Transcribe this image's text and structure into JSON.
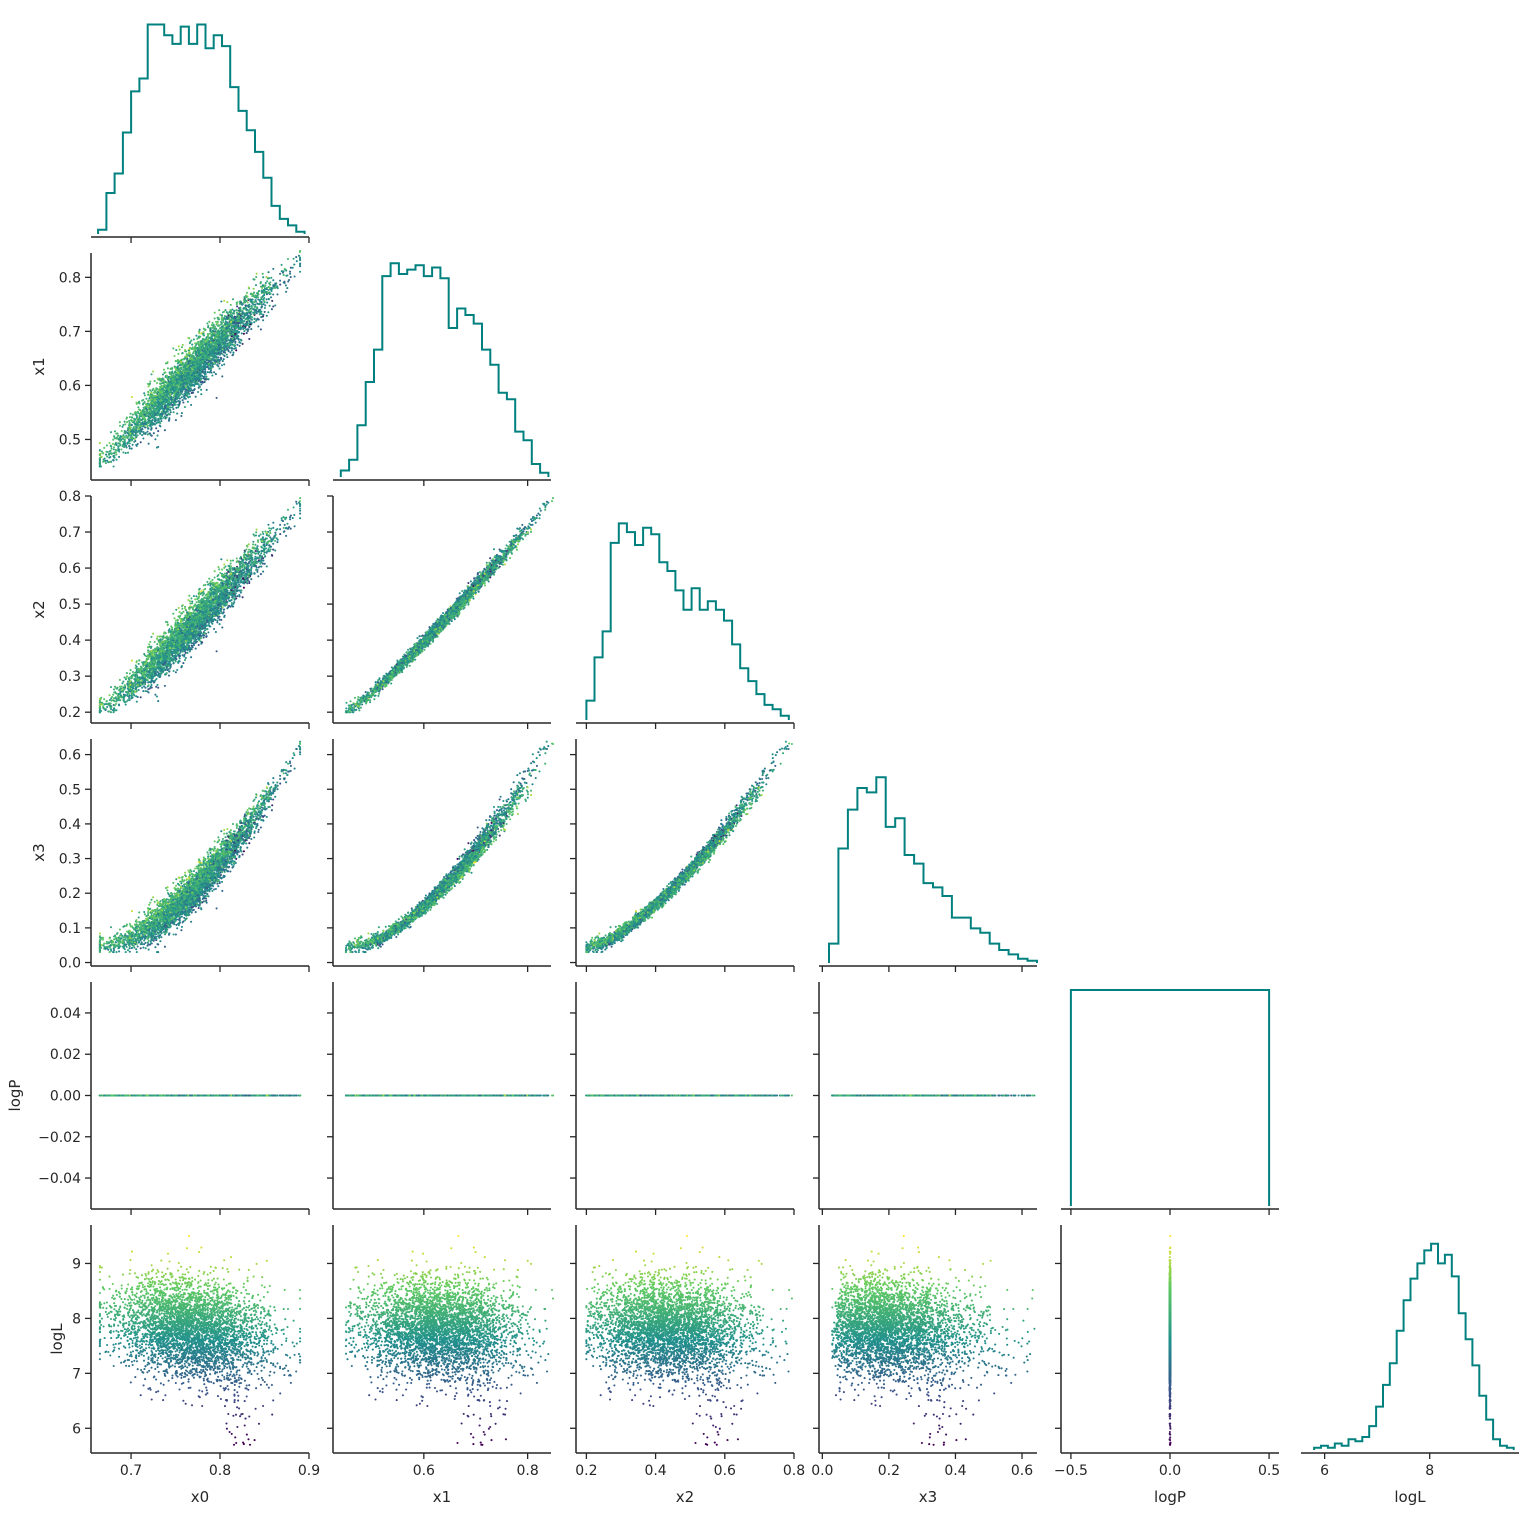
{
  "chart_data": {
    "type": "corner",
    "variables": [
      "x0",
      "x1",
      "x2",
      "x3",
      "logP",
      "logL"
    ],
    "axis_ranges": {
      "x0": [
        0.655,
        0.9
      ],
      "x1": [
        0.425,
        0.845
      ],
      "x2": [
        0.17,
        0.8
      ],
      "x3": [
        -0.01,
        0.645
      ],
      "logP": [
        -0.055,
        0.055
      ],
      "logL": [
        5.55,
        9.7
      ]
    },
    "ticks": {
      "x0": [
        "0.7",
        "0.8",
        "0.9"
      ],
      "x1": [
        "0.6",
        "0.8"
      ],
      "x2": [
        "0.2",
        "0.4",
        "0.6",
        "0.8"
      ],
      "x3": [
        "0.0",
        "0.2",
        "0.4",
        "0.6"
      ],
      "logP": [
        "−0.5",
        "0.0",
        "0.5"
      ],
      "logL": [
        "6",
        "8"
      ]
    },
    "row_ticks": {
      "x1": [
        "0.5",
        "0.6",
        "0.7",
        "0.8"
      ],
      "x2": [
        "0.2",
        "0.3",
        "0.4",
        "0.5",
        "0.6",
        "0.7",
        "0.8"
      ],
      "x3": [
        "0.0",
        "0.1",
        "0.2",
        "0.3",
        "0.4",
        "0.5",
        "0.6"
      ],
      "logP": [
        "−0.04",
        "−0.02",
        "0.00",
        "0.02",
        "0.04"
      ],
      "logL": [
        "6",
        "7",
        "8",
        "9"
      ]
    },
    "logP_hist_range": [
      -0.5,
      0.5
    ],
    "histograms": {
      "x0": [
        0.02,
        0.19,
        0.28,
        0.47,
        0.66,
        0.72,
        0.97,
        0.97,
        0.92,
        0.88,
        0.96,
        0.88,
        0.97,
        0.86,
        0.92,
        0.87,
        0.68,
        0.57,
        0.48,
        0.38,
        0.26,
        0.13,
        0.07,
        0.04,
        0.01
      ],
      "x1": [
        0.03,
        0.08,
        0.24,
        0.44,
        0.59,
        0.93,
        0.99,
        0.94,
        0.96,
        0.98,
        0.93,
        0.97,
        0.92,
        0.69,
        0.78,
        0.75,
        0.71,
        0.59,
        0.52,
        0.39,
        0.36,
        0.21,
        0.17,
        0.06,
        0.02
      ],
      "x2": [
        0.09,
        0.29,
        0.41,
        0.82,
        0.91,
        0.87,
        0.81,
        0.89,
        0.86,
        0.73,
        0.69,
        0.6,
        0.51,
        0.61,
        0.51,
        0.55,
        0.51,
        0.46,
        0.35,
        0.24,
        0.18,
        0.12,
        0.07,
        0.05,
        0.02
      ],
      "x3": [
        0.09,
        0.53,
        0.71,
        0.81,
        0.79,
        0.86,
        0.63,
        0.67,
        0.5,
        0.46,
        0.37,
        0.35,
        0.31,
        0.21,
        0.21,
        0.16,
        0.14,
        0.09,
        0.06,
        0.04,
        0.02,
        0.01
      ],
      "logP": [
        1.0
      ],
      "logL": [
        0.01,
        0.02,
        0.01,
        0.03,
        0.02,
        0.05,
        0.04,
        0.06,
        0.11,
        0.2,
        0.3,
        0.4,
        0.55,
        0.69,
        0.79,
        0.86,
        0.92,
        0.95,
        0.86,
        0.9,
        0.8,
        0.63,
        0.51,
        0.39,
        0.25,
        0.14,
        0.05,
        0.02,
        0.01
      ],
      "logL_range": [
        5.8,
        9.6
      ]
    },
    "samples": {
      "count": 4000,
      "x0_range": [
        0.665,
        0.89
      ],
      "relations": {
        "x1": "≈ 0.46 at x0=0.665 rising to ≈ 0.83 at x0=0.89",
        "x2": "≈ 0.21 at x0=0.665 rising to ≈ 0.77 at x0=0.89",
        "x3": "≈ 0.05 at x0=0.665 rising to ≈ 0.62 at x0=0.89",
        "logP": "0.00 for every sample",
        "logL": "mostly 7–9, centre ≈ 7.9, minimum ≈ 5.7 near x0 ≈ 0.82"
      },
      "color_by": "logL",
      "colormap": "viridis"
    },
    "hist_color": "#00817f",
    "scatter_colors": [
      "#440154",
      "#3b528b",
      "#21918c",
      "#5ec962",
      "#fde725"
    ],
    "legend": "none",
    "grid": false
  }
}
